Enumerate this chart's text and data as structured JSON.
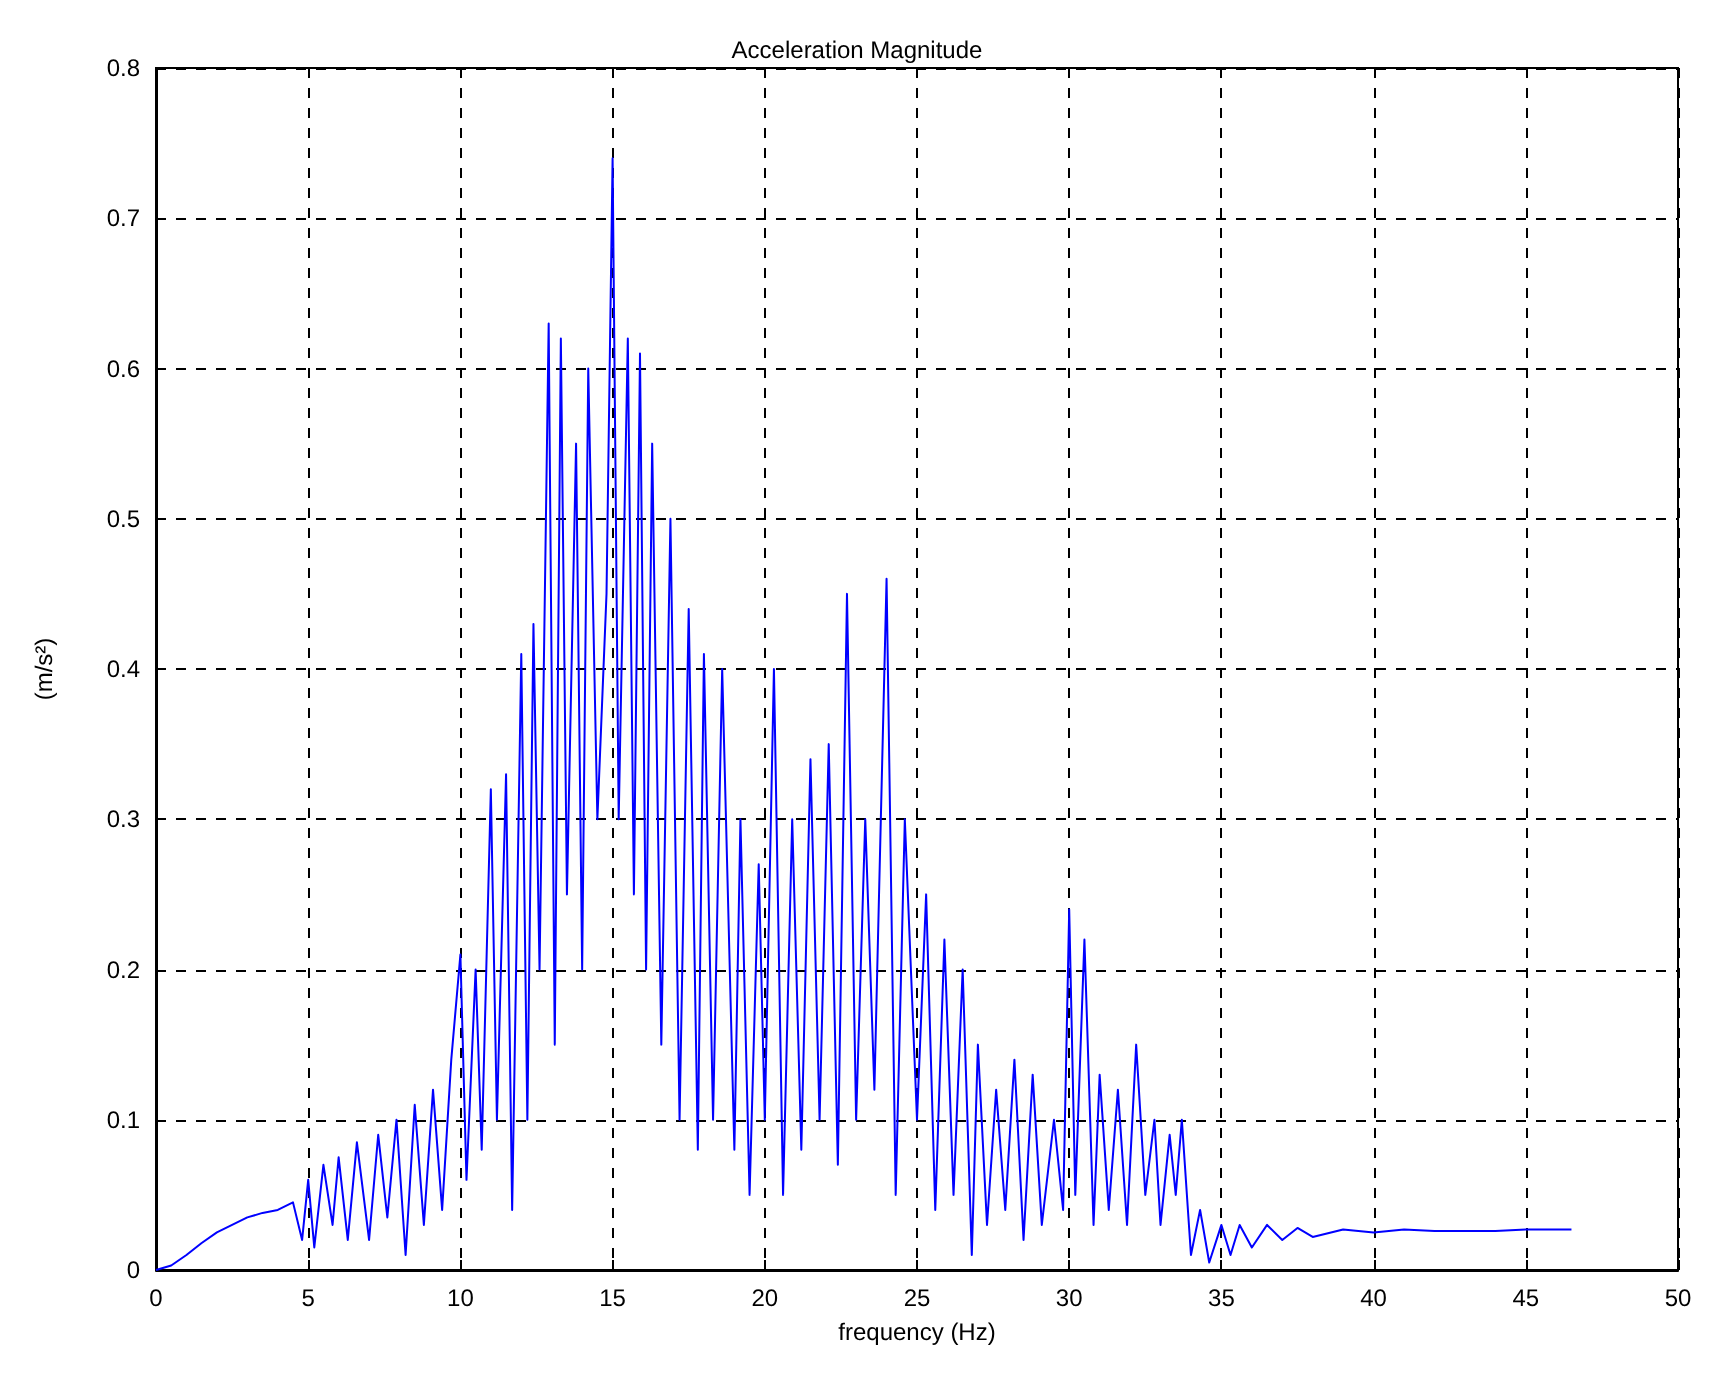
{
  "chart_data": {
    "type": "line",
    "title": "Acceleration Magnitude",
    "xlabel": "frequency (Hz)",
    "ylabel": "(m/s²)",
    "xlim": [
      0,
      50
    ],
    "xticks": [
      0,
      5,
      10,
      15,
      20,
      25,
      30,
      35,
      40,
      45,
      50
    ],
    "ylim": [
      0,
      0.8
    ],
    "yticks": [
      0,
      0.1,
      0.2,
      0.3,
      0.4,
      0.5,
      0.6,
      0.7,
      0.8
    ],
    "grid": true,
    "marker": "none",
    "line_style": "solid",
    "series": [
      {
        "color": "#0000ff",
        "x": [
          0,
          0.5,
          1,
          1.5,
          2,
          2.5,
          3,
          3.5,
          4,
          4.5,
          4.8,
          5,
          5.2,
          5.5,
          5.8,
          6,
          6.3,
          6.6,
          7,
          7.3,
          7.6,
          7.9,
          8.2,
          8.5,
          8.8,
          9.1,
          9.4,
          9.7,
          10,
          10.2,
          10.5,
          10.7,
          11,
          11.2,
          11.5,
          11.7,
          12,
          12.2,
          12.4,
          12.6,
          12.9,
          13.1,
          13.3,
          13.5,
          13.8,
          14,
          14.2,
          14.5,
          14.8,
          15,
          15.2,
          15.5,
          15.7,
          15.9,
          16.1,
          16.3,
          16.6,
          16.9,
          17.2,
          17.5,
          17.8,
          18,
          18.3,
          18.6,
          19,
          19.2,
          19.5,
          19.8,
          20,
          20.3,
          20.6,
          20.9,
          21.2,
          21.5,
          21.8,
          22.1,
          22.4,
          22.7,
          23,
          23.3,
          23.6,
          24,
          24.3,
          24.6,
          25,
          25.3,
          25.6,
          25.9,
          26.2,
          26.5,
          26.8,
          27,
          27.3,
          27.6,
          27.9,
          28.2,
          28.5,
          28.8,
          29.1,
          29.5,
          29.8,
          30,
          30.2,
          30.5,
          30.8,
          31,
          31.3,
          31.6,
          31.9,
          32.2,
          32.5,
          32.8,
          33,
          33.3,
          33.5,
          33.7,
          34,
          34.3,
          34.6,
          35,
          35.3,
          35.6,
          36,
          36.5,
          37,
          37.5,
          38,
          39,
          40,
          41,
          42,
          43,
          44,
          45,
          46.5
        ],
        "values": [
          0,
          0.003,
          0.01,
          0.018,
          0.025,
          0.03,
          0.035,
          0.038,
          0.04,
          0.045,
          0.02,
          0.06,
          0.015,
          0.07,
          0.03,
          0.075,
          0.02,
          0.085,
          0.02,
          0.09,
          0.035,
          0.1,
          0.01,
          0.11,
          0.03,
          0.12,
          0.04,
          0.14,
          0.21,
          0.06,
          0.2,
          0.08,
          0.32,
          0.1,
          0.33,
          0.04,
          0.41,
          0.1,
          0.43,
          0.2,
          0.63,
          0.15,
          0.62,
          0.25,
          0.55,
          0.2,
          0.6,
          0.3,
          0.45,
          0.74,
          0.3,
          0.62,
          0.25,
          0.61,
          0.2,
          0.55,
          0.15,
          0.5,
          0.1,
          0.44,
          0.08,
          0.41,
          0.1,
          0.4,
          0.08,
          0.3,
          0.05,
          0.27,
          0.1,
          0.4,
          0.05,
          0.3,
          0.08,
          0.34,
          0.1,
          0.35,
          0.07,
          0.45,
          0.1,
          0.3,
          0.12,
          0.46,
          0.05,
          0.3,
          0.1,
          0.25,
          0.04,
          0.22,
          0.05,
          0.2,
          0.01,
          0.15,
          0.03,
          0.12,
          0.04,
          0.14,
          0.02,
          0.13,
          0.03,
          0.1,
          0.04,
          0.24,
          0.05,
          0.22,
          0.03,
          0.13,
          0.04,
          0.12,
          0.03,
          0.15,
          0.05,
          0.1,
          0.03,
          0.09,
          0.05,
          0.1,
          0.01,
          0.04,
          0.005,
          0.03,
          0.01,
          0.03,
          0.015,
          0.03,
          0.02,
          0.028,
          0.022,
          0.027,
          0.025,
          0.027,
          0.026,
          0.026,
          0.026,
          0.027,
          0.027
        ]
      }
    ]
  }
}
